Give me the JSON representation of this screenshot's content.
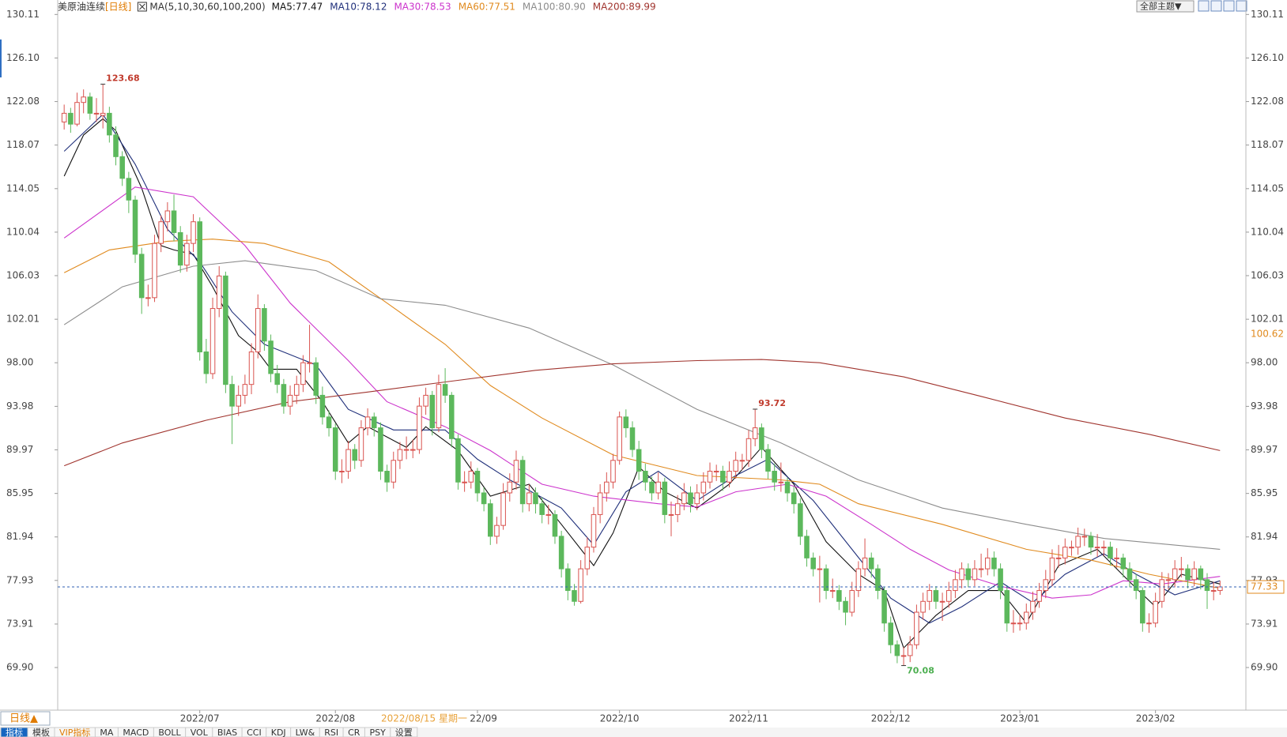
{
  "chart_data": {
    "type": "candlestick",
    "title": "美原油连续",
    "subtitle": "[日线]",
    "legend_title": "MA(5,10,30,60,100,200)",
    "up_color": "#d9534f",
    "down_color": "#5cb85c",
    "xlim": [
      -1,
      183
    ],
    "ylim": [
      65.97,
      130.57
    ],
    "xticks": [
      {
        "value": 21,
        "label": "2022/07"
      },
      {
        "value": 42,
        "label": "2022/08"
      },
      {
        "value": 64,
        "label": "2022/09"
      },
      {
        "value": 86,
        "label": "2022/10"
      },
      {
        "value": 106,
        "label": "2022/11"
      },
      {
        "value": 128,
        "label": "2022/12"
      },
      {
        "value": 148,
        "label": "2023/01"
      },
      {
        "value": 169,
        "label": "2023/02"
      }
    ],
    "yticks": [
      130.11,
      {
        "value": 126.1,
        "label": "126.10"
      },
      122.08,
      118.07,
      114.05,
      110.04,
      106.03,
      102.01,
      {
        "value": 98,
        "label": "98.00"
      },
      93.98,
      89.97,
      85.95,
      81.94,
      77.93,
      73.91,
      {
        "value": 69.9,
        "label": "69.90"
      }
    ],
    "grid": false,
    "candles": [
      [
        120.2,
        121.8,
        119.5,
        121
      ],
      [
        121,
        121.5,
        119.2,
        120
      ],
      [
        120,
        122.9,
        119.8,
        122
      ],
      [
        122,
        123.2,
        121,
        122.5
      ],
      [
        122.5,
        122.9,
        120.4,
        121
      ],
      [
        121,
        122.4,
        120.2,
        121
      ],
      [
        120.8,
        123.68,
        119.6,
        121
      ],
      [
        121,
        121.6,
        118.3,
        119
      ],
      [
        119,
        119.8,
        116.2,
        117
      ],
      [
        117,
        117.5,
        114.3,
        115
      ],
      [
        115,
        115.6,
        111.8,
        113
      ],
      [
        113,
        113.4,
        107.2,
        108
      ],
      [
        108,
        108.6,
        102.5,
        104
      ],
      [
        104,
        105.2,
        103.2,
        104
      ],
      [
        104,
        109.8,
        103.6,
        109
      ],
      [
        109,
        111.6,
        108.2,
        111
      ],
      [
        111,
        112.8,
        110.1,
        112
      ],
      [
        112,
        113.5,
        109.2,
        110
      ],
      [
        110,
        110.6,
        106.3,
        107
      ],
      [
        107,
        109.8,
        106.4,
        109
      ],
      [
        109,
        111.7,
        108.2,
        111
      ],
      [
        111,
        111.4,
        98.2,
        99
      ],
      [
        99,
        100.2,
        96.1,
        97
      ],
      [
        97,
        104,
        96.5,
        103
      ],
      [
        103,
        106.9,
        102.2,
        106
      ],
      [
        106,
        106.4,
        95.2,
        96
      ],
      [
        96,
        96.8,
        90.5,
        94
      ],
      [
        94,
        95.9,
        93.1,
        95
      ],
      [
        95,
        96.9,
        94.2,
        96
      ],
      [
        96,
        99.8,
        95.1,
        99
      ],
      [
        99,
        104.3,
        98.4,
        103
      ],
      [
        103,
        103.4,
        99.1,
        100
      ],
      [
        100,
        100.6,
        96.2,
        97
      ],
      [
        97,
        97.8,
        95.2,
        96
      ],
      [
        96,
        96.5,
        93.3,
        94
      ],
      [
        94,
        95.9,
        93.2,
        95
      ],
      [
        95,
        96.8,
        94.2,
        96
      ],
      [
        96,
        98.7,
        95.3,
        98
      ],
      [
        98,
        101.5,
        97.1,
        98
      ],
      [
        98,
        98.5,
        94.2,
        95
      ],
      [
        95,
        95.8,
        92.3,
        93
      ],
      [
        93,
        93.6,
        91.2,
        92
      ],
      [
        92,
        92.4,
        87.2,
        88
      ],
      [
        88,
        89.1,
        86.9,
        88
      ],
      [
        88,
        90.8,
        87.3,
        90
      ],
      [
        90,
        90.5,
        88.2,
        89
      ],
      [
        89,
        92.7,
        88.4,
        92
      ],
      [
        92,
        93.8,
        91.3,
        93
      ],
      [
        93,
        93.4,
        91.2,
        92
      ],
      [
        92,
        92.5,
        87.2,
        88
      ],
      [
        88,
        88.6,
        86.1,
        87
      ],
      [
        87,
        89.8,
        86.4,
        89
      ],
      [
        89,
        90.7,
        88.2,
        90
      ],
      [
        90,
        91.2,
        89.1,
        90
      ],
      [
        90,
        90.9,
        89.2,
        90
      ],
      [
        90,
        94.8,
        89.6,
        94
      ],
      [
        94,
        95.7,
        93.2,
        95
      ],
      [
        95,
        95.4,
        91.3,
        92
      ],
      [
        92,
        96.9,
        91.6,
        96
      ],
      [
        96,
        97.5,
        94.3,
        95
      ],
      [
        95,
        95.3,
        90.2,
        91
      ],
      [
        91,
        91.4,
        86.3,
        87
      ],
      [
        87,
        88,
        86.1,
        87
      ],
      [
        87,
        88.9,
        86.4,
        88
      ],
      [
        88,
        88.3,
        85.2,
        86
      ],
      [
        86,
        86.5,
        84.3,
        85
      ],
      [
        85,
        85.4,
        81.2,
        82
      ],
      [
        82,
        83.8,
        81.3,
        83
      ],
      [
        83,
        86.9,
        82.6,
        86
      ],
      [
        86,
        87.8,
        85.2,
        87
      ],
      [
        87,
        89.9,
        86.3,
        89
      ],
      [
        89,
        89.4,
        84.2,
        85
      ],
      [
        85,
        86.8,
        84.3,
        86
      ],
      [
        86,
        86.5,
        84.1,
        85
      ],
      [
        85,
        85.6,
        83.2,
        84
      ],
      [
        84,
        84.9,
        83.1,
        84
      ],
      [
        84,
        84.4,
        81.3,
        82
      ],
      [
        82,
        82.5,
        78.2,
        79
      ],
      [
        79,
        79.5,
        76.1,
        77
      ],
      [
        77,
        77.6,
        75.6,
        76
      ],
      [
        76,
        79.8,
        75.8,
        79
      ],
      [
        79,
        81.9,
        78.4,
        81
      ],
      [
        81,
        84.7,
        80.5,
        84
      ],
      [
        84,
        86.8,
        83.2,
        86
      ],
      [
        86,
        87.9,
        85.2,
        87
      ],
      [
        87,
        89.6,
        86.4,
        89
      ],
      [
        89,
        93.5,
        88.6,
        93
      ],
      [
        93,
        93.7,
        91.1,
        92
      ],
      [
        92,
        92.6,
        89.3,
        90
      ],
      [
        90,
        90.8,
        87.2,
        88
      ],
      [
        88,
        88.7,
        86.2,
        87
      ],
      [
        87,
        87.5,
        85.3,
        86
      ],
      [
        86,
        87.9,
        85.4,
        87
      ],
      [
        87,
        87.4,
        83.2,
        84
      ],
      [
        84,
        85.2,
        82,
        84
      ],
      [
        84,
        85.8,
        83.3,
        85
      ],
      [
        85,
        86.9,
        84.4,
        86
      ],
      [
        86,
        86.6,
        84.2,
        85
      ],
      [
        85,
        86.8,
        84.4,
        86
      ],
      [
        86,
        87.9,
        85.3,
        87
      ],
      [
        87,
        88.8,
        86.4,
        88
      ],
      [
        88,
        88.6,
        87.1,
        88
      ],
      [
        88,
        88.5,
        86.2,
        87
      ],
      [
        87,
        88.9,
        86.5,
        88
      ],
      [
        88,
        89.8,
        87.3,
        89
      ],
      [
        89,
        89.6,
        88.1,
        89
      ],
      [
        89,
        91.8,
        88.4,
        91
      ],
      [
        91,
        93.72,
        90.3,
        92
      ],
      [
        92,
        92.4,
        89.2,
        90
      ],
      [
        90,
        90.5,
        87.3,
        88
      ],
      [
        88,
        88.7,
        86.2,
        87
      ],
      [
        87,
        88.8,
        86.1,
        87
      ],
      [
        87,
        87.4,
        85.2,
        86
      ],
      [
        86,
        86.6,
        84.1,
        85
      ],
      [
        85,
        85.5,
        81.2,
        82
      ],
      [
        82,
        82.6,
        79.2,
        80
      ],
      [
        80,
        80.5,
        78.3,
        79
      ],
      [
        79,
        80.2,
        75.9,
        79
      ],
      [
        79,
        79.4,
        76.2,
        77
      ],
      [
        77,
        78.1,
        76.3,
        77
      ],
      [
        77,
        77.5,
        75.2,
        76
      ],
      [
        76,
        76.4,
        73.8,
        75
      ],
      [
        75,
        77.8,
        74.6,
        77
      ],
      [
        77,
        79.7,
        76.4,
        79
      ],
      [
        79,
        81.8,
        78.3,
        80
      ],
      [
        80,
        80.5,
        78.2,
        79
      ],
      [
        79,
        79.4,
        76.2,
        77
      ],
      [
        77,
        77.3,
        73.2,
        74
      ],
      [
        74,
        74.6,
        71.2,
        72
      ],
      [
        72,
        72.4,
        70.3,
        71
      ],
      [
        71,
        71.8,
        70.08,
        71
      ],
      [
        71,
        72.8,
        70.4,
        72
      ],
      [
        72,
        75.7,
        71.6,
        75
      ],
      [
        75,
        76.8,
        74.3,
        76
      ],
      [
        76,
        77.6,
        75.2,
        77
      ],
      [
        77,
        77.4,
        75.3,
        76
      ],
      [
        76,
        76.8,
        74.2,
        76
      ],
      [
        76,
        77.8,
        75.4,
        77
      ],
      [
        77,
        78.9,
        76.3,
        78
      ],
      [
        78,
        79.6,
        77.2,
        79
      ],
      [
        79,
        79.5,
        77.3,
        78
      ],
      [
        78,
        79.8,
        77.4,
        79
      ],
      [
        79,
        80.4,
        78.2,
        79
      ],
      [
        79,
        80.9,
        78.4,
        80
      ],
      [
        80,
        80.6,
        78.3,
        79
      ],
      [
        79,
        79.5,
        76.2,
        77
      ],
      [
        77,
        77.4,
        73.2,
        74
      ],
      [
        74,
        75.2,
        73.1,
        74
      ],
      [
        74,
        74.8,
        73.3,
        74
      ],
      [
        74,
        75.8,
        73.4,
        75
      ],
      [
        75,
        76.9,
        74.3,
        76
      ],
      [
        76,
        77.7,
        75.4,
        77
      ],
      [
        77,
        78.9,
        76.3,
        78
      ],
      [
        78,
        80.8,
        77.4,
        80
      ],
      [
        80,
        81.2,
        79.1,
        80
      ],
      [
        80,
        81.8,
        79.4,
        81
      ],
      [
        81,
        81.6,
        80.2,
        81
      ],
      [
        81,
        82.8,
        80.3,
        82
      ],
      [
        82,
        82.7,
        81.1,
        82
      ],
      [
        82,
        82.4,
        80.3,
        81
      ],
      [
        81,
        82.2,
        80.1,
        81
      ],
      [
        81,
        81.6,
        80.2,
        81
      ],
      [
        81,
        81.5,
        79.3,
        80
      ],
      [
        80,
        80.9,
        79.1,
        80
      ],
      [
        80,
        80.4,
        78.2,
        79
      ],
      [
        79,
        79.6,
        77.3,
        78
      ],
      [
        78,
        78.5,
        76.2,
        77
      ],
      [
        77,
        77.3,
        73.2,
        74
      ],
      [
        74,
        74.9,
        73.1,
        74
      ],
      [
        74,
        76.8,
        73.6,
        76
      ],
      [
        76,
        78.7,
        75.4,
        78
      ],
      [
        78,
        78.6,
        77.1,
        78
      ],
      [
        78,
        79.8,
        77.3,
        79
      ],
      [
        79,
        80.1,
        78.2,
        79
      ],
      [
        79,
        79.4,
        77.2,
        78
      ],
      [
        78,
        79.7,
        77.4,
        79
      ],
      [
        79,
        79.3,
        77.1,
        78
      ],
      [
        78,
        78.6,
        75.3,
        77
      ],
      [
        77,
        77.8,
        76.1,
        77
      ],
      [
        77,
        77.9,
        76.6,
        77.33
      ]
    ],
    "series": [
      {
        "name": "MA5:77.47",
        "color": "#111111",
        "x": [
          0,
          3,
          6,
          8,
          12,
          15,
          17,
          20,
          23,
          27,
          30,
          32,
          36,
          40,
          44,
          47,
          53,
          56,
          61,
          66,
          72,
          77,
          82,
          85,
          89,
          93,
          98,
          103,
          108,
          113,
          118,
          123,
          127,
          130,
          135,
          140,
          145,
          149,
          154,
          160,
          165,
          169,
          173,
          179
        ],
        "values": [
          115.2,
          119.0,
          120.5,
          119.4,
          114.1,
          108.8,
          108.4,
          108.0,
          105.0,
          100.5,
          99.0,
          97.4,
          97.4,
          94.4,
          90.6,
          92.1,
          90.2,
          92.1,
          89.9,
          85.7,
          86.8,
          83.1,
          79.3,
          82.3,
          88.4,
          86.1,
          84.6,
          86.8,
          90.2,
          86.8,
          81.5,
          78.5,
          77.0,
          71.7,
          74.7,
          77.0,
          77.0,
          74.0,
          79.3,
          80.8,
          77.8,
          75.5,
          78.5,
          77.6
        ]
      },
      {
        "name": "MA10:78.12",
        "color": "#1f2f7a",
        "x": [
          0,
          6,
          11,
          16,
          21,
          26,
          31,
          39,
          44,
          51,
          59,
          64,
          69,
          77,
          82,
          87,
          92,
          98,
          104,
          109,
          116,
          122,
          128,
          134,
          139,
          145,
          150,
          155,
          161,
          166,
          172,
          179
        ],
        "values": [
          117.5,
          120.9,
          116.3,
          110.3,
          107.3,
          102.7,
          99.7,
          97.8,
          93.7,
          91.8,
          91.8,
          89.1,
          87.2,
          84.6,
          81.2,
          86.1,
          88.0,
          85.3,
          87.6,
          89.1,
          85.3,
          80.8,
          76.3,
          74.0,
          75.5,
          77.8,
          75.9,
          78.5,
          80.4,
          78.5,
          76.6,
          77.9
        ]
      },
      {
        "name": "MA30:78.53",
        "color": "#cc33cc",
        "x": [
          0,
          11,
          20,
          28,
          35,
          44,
          50,
          59,
          66,
          74,
          82,
          92,
          98,
          104,
          112,
          118,
          125,
          131,
          137,
          145,
          153,
          159,
          164,
          170,
          179
        ],
        "values": [
          109.5,
          114.2,
          113.3,
          108.8,
          103.5,
          98.2,
          94.4,
          92.1,
          89.9,
          86.8,
          85.7,
          85.0,
          84.7,
          86.1,
          86.8,
          85.7,
          83.1,
          80.8,
          78.9,
          77.4,
          76.3,
          76.6,
          77.9,
          77.6,
          78.3
        ]
      },
      {
        "name": "MA60:77.51",
        "color": "#e08a1e",
        "x": [
          0,
          7,
          16,
          23,
          31,
          41,
          50,
          59,
          66,
          74,
          85,
          98,
          111,
          117,
          123,
          136,
          149,
          159,
          168,
          179
        ],
        "values": [
          106.3,
          108.4,
          109.2,
          109.4,
          109.0,
          107.3,
          103.5,
          99.7,
          95.9,
          92.9,
          89.5,
          87.6,
          87.2,
          86.8,
          85.0,
          83.1,
          80.8,
          79.8,
          78.5,
          77.2
        ]
      },
      {
        "name": "MA100:80.90",
        "color": "#8c8c8c",
        "x": [
          0,
          9,
          20,
          28,
          39,
          49,
          59,
          72,
          85,
          98,
          111,
          123,
          136,
          149,
          161,
          179
        ],
        "values": [
          101.5,
          105.0,
          106.9,
          107.4,
          106.5,
          103.9,
          103.3,
          101.2,
          97.8,
          93.7,
          90.6,
          87.2,
          84.6,
          83.1,
          81.8,
          80.8
        ]
      },
      {
        "name": "MA200:89.99",
        "color": "#a0342e",
        "x": [
          0,
          9,
          22,
          35,
          47,
          60,
          73,
          85,
          98,
          108,
          117,
          130,
          142,
          155,
          168,
          179
        ],
        "values": [
          88.5,
          90.6,
          92.7,
          94.4,
          95.3,
          96.3,
          97.3,
          97.9,
          98.2,
          98.3,
          98.0,
          96.7,
          94.9,
          92.9,
          91.4,
          89.9
        ]
      }
    ],
    "annotations": [
      {
        "x": 6,
        "value": 123.68,
        "color": "#c0392b"
      },
      {
        "x": 107,
        "value": 93.72,
        "color": "#c0392b"
      },
      {
        "x": 130,
        "value": 70.08,
        "color": "#4caf50"
      }
    ],
    "last_price": 77.33,
    "last_price_color": "#e08a1e",
    "ref_price": 100.62,
    "ref_price_color": "#e08a1e"
  },
  "ui": {
    "theme_button": "全部主题▼",
    "period_tab": "日线▲",
    "cursor_date": "2022/08/15 星期一",
    "tabs": [
      "指标",
      "模板",
      "VIP指标",
      "MA",
      "MACD",
      "BOLL",
      "VOL",
      "BIAS",
      "CCI",
      "KDJ",
      "LW&",
      "RSI",
      "CR",
      "PSY",
      "设置"
    ]
  }
}
